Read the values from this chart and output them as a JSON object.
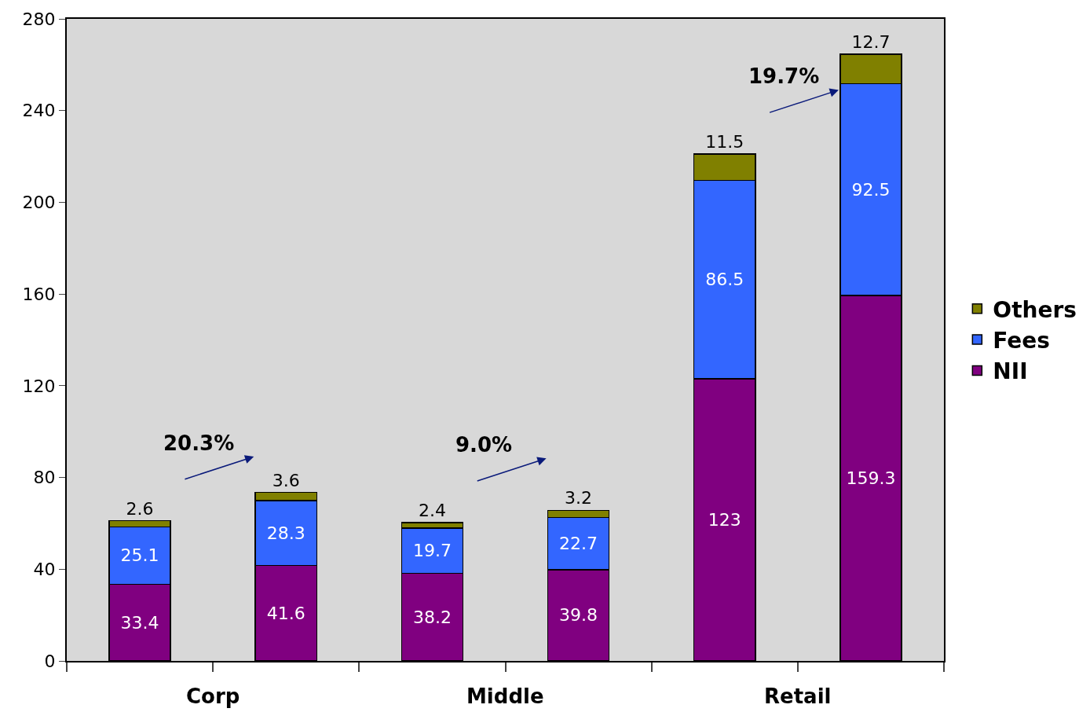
{
  "chart_data": {
    "type": "bar",
    "stacked": true,
    "categories": [
      null,
      null,
      null,
      null,
      null,
      null
    ],
    "series": [
      {
        "name": "NII",
        "color": "#800080",
        "values": [
          33.4,
          41.6,
          38.2,
          39.8,
          123,
          159.3
        ]
      },
      {
        "name": "Fees",
        "color": "#3366ff",
        "values": [
          25.1,
          28.3,
          19.7,
          22.7,
          86.5,
          92.5
        ]
      },
      {
        "name": "Others",
        "color": "#808000",
        "values": [
          2.6,
          3.6,
          2.4,
          3.2,
          11.5,
          12.7
        ]
      }
    ],
    "ylim": [
      0,
      280
    ],
    "yticks": [
      0,
      40,
      80,
      120,
      160,
      200,
      240,
      280
    ],
    "data_labels": true,
    "grid": false,
    "legend": "right",
    "annotations": [
      "Corp",
      "Middle",
      "Retail",
      "20.3%",
      "9.0%",
      "19.7%"
    ]
  }
}
